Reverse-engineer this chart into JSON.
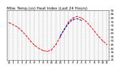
{
  "title": "Milw. Temp.(vs) Heat Index (Last 24 Hours)",
  "bg_color": "#ffffff",
  "plot_bg": "#f8f8f8",
  "grid_color": "#888888",
  "temp_color": "#ff0000",
  "heat_color": "#0000cc",
  "black_color": "#000000",
  "x_values": [
    0,
    1,
    2,
    3,
    4,
    5,
    6,
    7,
    8,
    9,
    10,
    11,
    12,
    13,
    14,
    15,
    16,
    17,
    18,
    19,
    20,
    21,
    22,
    23
  ],
  "temp_values": [
    74,
    71,
    68,
    63,
    57,
    50,
    44,
    40,
    37,
    36,
    38,
    45,
    55,
    65,
    75,
    80,
    82,
    80,
    76,
    70,
    63,
    56,
    50,
    45
  ],
  "heat_values": [
    null,
    null,
    null,
    null,
    null,
    null,
    null,
    null,
    null,
    null,
    null,
    null,
    56,
    65,
    73,
    78,
    79,
    77,
    null,
    null,
    null,
    null,
    null,
    null
  ],
  "ylim_min": 25,
  "ylim_max": 90,
  "ytick_values": [
    25,
    30,
    35,
    40,
    45,
    50,
    55,
    60,
    65,
    70,
    75,
    80,
    85,
    90
  ],
  "xtick_labels": [
    "12",
    "1",
    "2",
    "3",
    "4",
    "5",
    "6",
    "7",
    "8",
    "9",
    "10",
    "11",
    "12",
    "1",
    "2",
    "3",
    "4",
    "5",
    "6",
    "7",
    "8",
    "9",
    "10",
    "11"
  ],
  "title_fontsize": 4.0,
  "tick_fontsize": 3.0,
  "linewidth": 0.7,
  "marker": ".",
  "marker_size": 1.5,
  "linestyle": "--"
}
